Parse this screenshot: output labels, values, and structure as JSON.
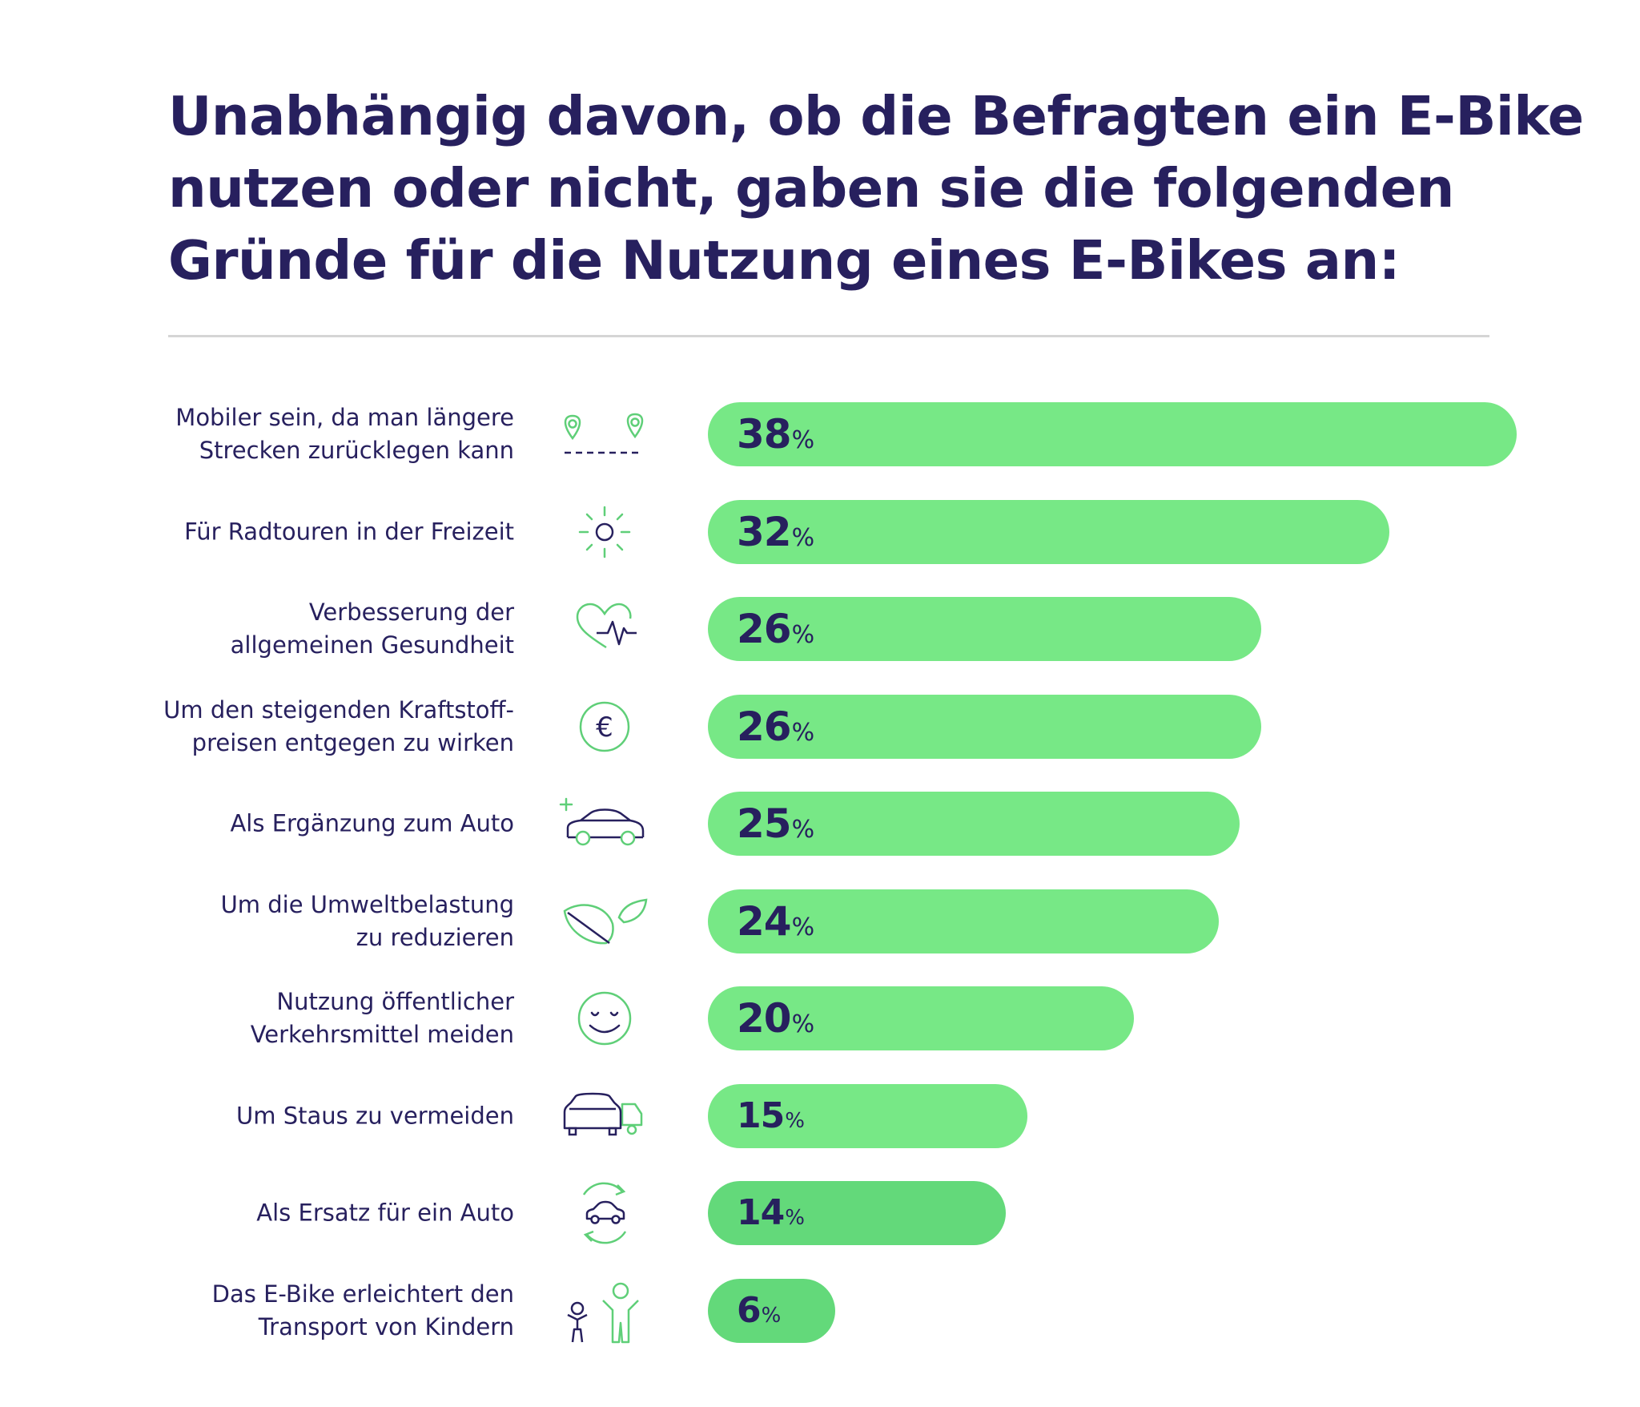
{
  "title_lines": [
    "Unabhängig davon, ob die Befragten ein E-Bike",
    "nutzen oder nicht, gaben sie die folgenden",
    "Gründe für die Nutzung eines E-Bikes an:"
  ],
  "colors": {
    "bar": "#77e886",
    "text": "#27205e",
    "icon_green": "#5fcf78",
    "divider": "#d5d5d5"
  },
  "chart_data": {
    "type": "bar",
    "orientation": "horizontal",
    "title": "Unabhängig davon, ob die Befragten ein E-Bike nutzen oder nicht, gaben sie die folgenden Gründe für die Nutzung eines E-Bikes an:",
    "unit": "%",
    "xlim": [
      0,
      38
    ],
    "grid": false,
    "legend": "none",
    "categories": [
      "Mobiler sein, da man längere Strecken zurücklegen kann",
      "Für Radtouren in der Freizeit",
      "Verbesserung der allgemeinen Gesundheit",
      "Um den steigenden Kraftstoff-preisen entgegen zu wirken",
      "Als Ergänzung zum Auto",
      "Um die Umweltbelastung zu reduzieren",
      "Nutzung öffentlicher Verkehrsmittel meiden",
      "Um Staus zu vermeiden",
      "Als Ersatz für ein Auto",
      "Das E-Bike erleichtert den Transport von Kindern"
    ],
    "values": [
      38,
      32,
      26,
      26,
      25,
      24,
      20,
      15,
      14,
      6
    ],
    "bars": [
      {
        "label_lines": [
          "Mobiler sein, da man längere",
          "Strecken zurücklegen kann"
        ],
        "value": 38,
        "value_text": "38",
        "unit": "%",
        "icon": "map-route-icon"
      },
      {
        "label_lines": [
          "Für Radtouren in der Freizeit"
        ],
        "value": 32,
        "value_text": "32",
        "unit": "%",
        "icon": "sun-icon"
      },
      {
        "label_lines": [
          "Verbesserung der",
          "allgemeinen Gesundheit"
        ],
        "value": 26,
        "value_text": "26",
        "unit": "%",
        "icon": "heart-pulse-icon"
      },
      {
        "label_lines": [
          "Um den steigenden Kraftstoff-",
          "preisen entgegen zu wirken"
        ],
        "value": 26,
        "value_text": "26",
        "unit": "%",
        "icon": "euro-icon"
      },
      {
        "label_lines": [
          "Als Ergänzung zum Auto"
        ],
        "value": 25,
        "value_text": "25",
        "unit": "%",
        "icon": "car-plus-icon"
      },
      {
        "label_lines": [
          "Um die Umweltbelastung",
          "zu reduzieren"
        ],
        "value": 24,
        "value_text": "24",
        "unit": "%",
        "icon": "leaf-icon"
      },
      {
        "label_lines": [
          "Nutzung öffentlicher",
          "Verkehrsmittel meiden"
        ],
        "value": 20,
        "value_text": "20",
        "unit": "%",
        "icon": "smiley-icon"
      },
      {
        "label_lines": [
          "Um Staus zu vermeiden"
        ],
        "value": 15,
        "value_text": "15",
        "unit": "%",
        "icon": "traffic-jam-icon"
      },
      {
        "label_lines": [
          "Als Ersatz für ein Auto"
        ],
        "value": 14,
        "value_text": "14",
        "unit": "%",
        "icon": "car-replace-icon"
      },
      {
        "label_lines": [
          "Das E-Bike erleichtert den",
          "Transport von Kindern"
        ],
        "value": 6,
        "value_text": "6",
        "unit": "%",
        "icon": "children-icon"
      }
    ]
  }
}
